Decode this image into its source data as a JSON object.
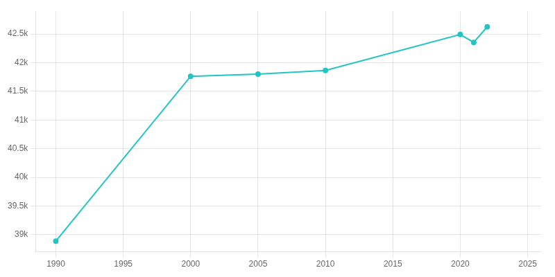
{
  "chart_data": {
    "type": "line",
    "x": [
      1990,
      2000,
      2005,
      2010,
      2020,
      2021,
      2022
    ],
    "values": [
      38886,
      41762,
      41800,
      41863,
      42491,
      42354,
      42625
    ],
    "color": "#22c4c4",
    "marker": "circle",
    "xlim": [
      1988.5,
      2026
    ],
    "xticks": [
      1990,
      1995,
      2000,
      2005,
      2010,
      2015,
      2020,
      2025
    ],
    "ylim": [
      38700,
      42900
    ],
    "yticks": [
      {
        "value": 39000,
        "label": "39k"
      },
      {
        "value": 39500,
        "label": "39.5k"
      },
      {
        "value": 40000,
        "label": "40k"
      },
      {
        "value": 40500,
        "label": "40.5k"
      },
      {
        "value": 41000,
        "label": "41k"
      },
      {
        "value": 41500,
        "label": "41.5k"
      },
      {
        "value": 42000,
        "label": "42k"
      },
      {
        "value": 42500,
        "label": "42.5k"
      }
    ],
    "grid": true
  }
}
